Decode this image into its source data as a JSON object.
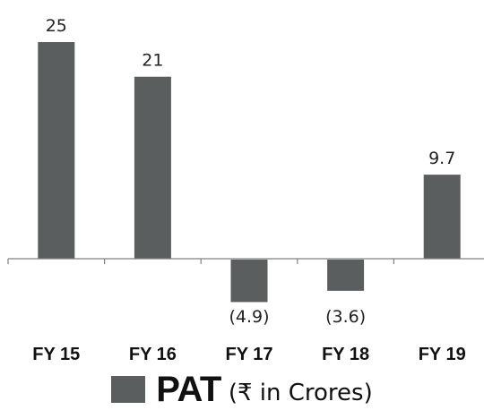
{
  "chart_data": {
    "type": "bar",
    "categories": [
      "FY 15",
      "FY 16",
      "FY 17",
      "FY 18",
      "FY 19"
    ],
    "values": [
      25,
      21,
      -4.9,
      -3.6,
      9.7
    ],
    "value_labels": [
      "25",
      "21",
      "(4.9)",
      "(3.6)",
      "9.7"
    ],
    "series": [
      {
        "name": "PAT",
        "values": [
          25,
          21,
          -4.9,
          -3.6,
          9.7
        ]
      }
    ],
    "legend": {
      "name": "PAT",
      "unit": "(₹ in Crores)",
      "placement": "bottom-center"
    },
    "bar_color": "#5b5e5e",
    "axis_color": "#808080",
    "grid": false
  }
}
